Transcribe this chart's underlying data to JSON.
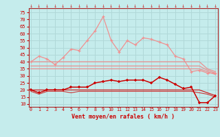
{
  "xlabel": "Vent moyen/en rafales ( km/h )",
  "background_color": "#c5ecec",
  "grid_color": "#b0d8d8",
  "x": [
    0,
    1,
    2,
    3,
    4,
    5,
    6,
    7,
    8,
    9,
    10,
    11,
    12,
    13,
    14,
    15,
    16,
    17,
    18,
    19,
    20,
    21,
    22,
    23
  ],
  "rafales": [
    40,
    44,
    42,
    38,
    43,
    49,
    48,
    55,
    62,
    72,
    55,
    47,
    55,
    52,
    57,
    56,
    54,
    52,
    44,
    42,
    33,
    34,
    32,
    32
  ],
  "moyen": [
    20,
    18,
    20,
    20,
    20,
    22,
    22,
    22,
    25,
    26,
    27,
    26,
    27,
    27,
    27,
    25,
    29,
    27,
    24,
    21,
    22,
    11,
    11,
    16
  ],
  "band_top": [
    40,
    40,
    40,
    40,
    40,
    40,
    40,
    40,
    40,
    40,
    40,
    40,
    40,
    40,
    40,
    40,
    40,
    40,
    40,
    40,
    40,
    40,
    35,
    33
  ],
  "band_mid": [
    37,
    37,
    37,
    37,
    37,
    37,
    37,
    37,
    37,
    37,
    37,
    37,
    37,
    37,
    37,
    37,
    37,
    37,
    37,
    37,
    37,
    37,
    34,
    32
  ],
  "band_bot": [
    35,
    35,
    35,
    35,
    35,
    35,
    35,
    35,
    35,
    35,
    35,
    35,
    35,
    35,
    35,
    35,
    35,
    35,
    35,
    35,
    35,
    35,
    33,
    31
  ],
  "flat_dark": [
    20,
    20,
    20,
    20,
    20,
    20,
    20,
    20,
    20,
    20,
    20,
    20,
    20,
    20,
    20,
    20,
    20,
    20,
    20,
    20,
    20,
    20,
    18,
    16
  ],
  "flat_low": [
    19,
    17,
    19,
    19,
    19,
    18,
    19,
    19,
    19,
    19,
    19,
    19,
    19,
    19,
    19,
    19,
    19,
    19,
    19,
    19,
    19,
    18,
    17,
    15
  ],
  "yticks": [
    10,
    15,
    20,
    25,
    30,
    35,
    40,
    45,
    50,
    55,
    60,
    65,
    70,
    75
  ],
  "color_rafales": "#f09090",
  "color_moyen": "#cc0000",
  "color_band": "#ee8888",
  "color_dark_flat": "#cc2222",
  "color_low_flat": "#cc3333"
}
